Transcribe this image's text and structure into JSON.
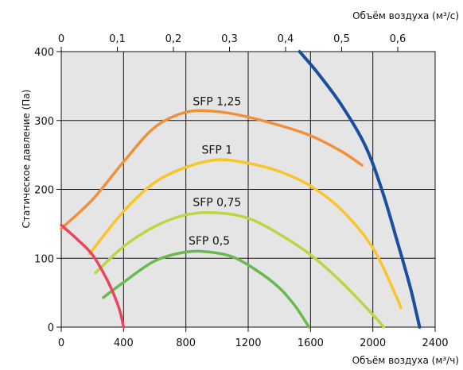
{
  "chart_data": {
    "type": "line",
    "title": "",
    "xlabel": "Объём воздуха (м³/ч)",
    "x2label": "Объём воздуха (м³/с)",
    "ylabel": "Статическое давление (Па)",
    "xlim": [
      0,
      2400
    ],
    "x2lim": [
      0,
      0.6667
    ],
    "ylim": [
      0,
      400
    ],
    "xticks": [
      "0",
      "400",
      "800",
      "1200",
      "1600",
      "2000",
      "2400"
    ],
    "x2ticks": [
      "0",
      "0,1",
      "0,2",
      "0,3",
      "0,4",
      "0,5",
      "0,6"
    ],
    "yticks": [
      "0",
      "100",
      "200",
      "300",
      "400"
    ],
    "grid": true,
    "background_color": "#e5e5e5",
    "grid_color": "#111111",
    "series": [
      {
        "name": "SFP 1,25",
        "color": "#f0903a",
        "points": [
          [
            0,
            143
          ],
          [
            200,
            185
          ],
          [
            400,
            240
          ],
          [
            600,
            290
          ],
          [
            800,
            312
          ],
          [
            1000,
            313
          ],
          [
            1200,
            305
          ],
          [
            1400,
            293
          ],
          [
            1600,
            278
          ],
          [
            1800,
            255
          ],
          [
            1930,
            235
          ]
        ]
      },
      {
        "name": "SFP 1",
        "color": "#f8c52a",
        "points": [
          [
            180,
            106
          ],
          [
            400,
            168
          ],
          [
            600,
            210
          ],
          [
            800,
            232
          ],
          [
            1000,
            243
          ],
          [
            1200,
            238
          ],
          [
            1400,
            226
          ],
          [
            1600,
            205
          ],
          [
            1800,
            170
          ],
          [
            2000,
            115
          ],
          [
            2150,
            45
          ],
          [
            2180,
            28
          ]
        ]
      },
      {
        "name": "SFP 0,75",
        "color": "#b9d742",
        "points": [
          [
            220,
            79
          ],
          [
            400,
            117
          ],
          [
            600,
            146
          ],
          [
            800,
            163
          ],
          [
            1000,
            166
          ],
          [
            1200,
            158
          ],
          [
            1400,
            135
          ],
          [
            1600,
            105
          ],
          [
            1800,
            65
          ],
          [
            2000,
            18
          ],
          [
            2070,
            0
          ]
        ]
      },
      {
        "name": "SFP 0,5",
        "color": "#6ab850",
        "points": [
          [
            270,
            43
          ],
          [
            400,
            65
          ],
          [
            600,
            96
          ],
          [
            800,
            109
          ],
          [
            950,
            109
          ],
          [
            1100,
            102
          ],
          [
            1250,
            83
          ],
          [
            1400,
            57
          ],
          [
            1500,
            31
          ],
          [
            1590,
            0
          ]
        ]
      },
      {
        "name": "",
        "color": "#e8465e",
        "points": [
          [
            0,
            148
          ],
          [
            100,
            128
          ],
          [
            200,
            105
          ],
          [
            300,
            66
          ],
          [
            370,
            28
          ],
          [
            400,
            0
          ]
        ]
      },
      {
        "name": "",
        "color": "#1a4fa0",
        "points": [
          [
            1530,
            400
          ],
          [
            1650,
            368
          ],
          [
            1800,
            322
          ],
          [
            1950,
            264
          ],
          [
            2060,
            198
          ],
          [
            2160,
            122
          ],
          [
            2240,
            58
          ],
          [
            2280,
            20
          ],
          [
            2300,
            0
          ]
        ]
      }
    ],
    "annotations": [
      "SFP 1,25",
      "SFP 1",
      "SFP 0,75",
      "SFP 0,5"
    ]
  }
}
